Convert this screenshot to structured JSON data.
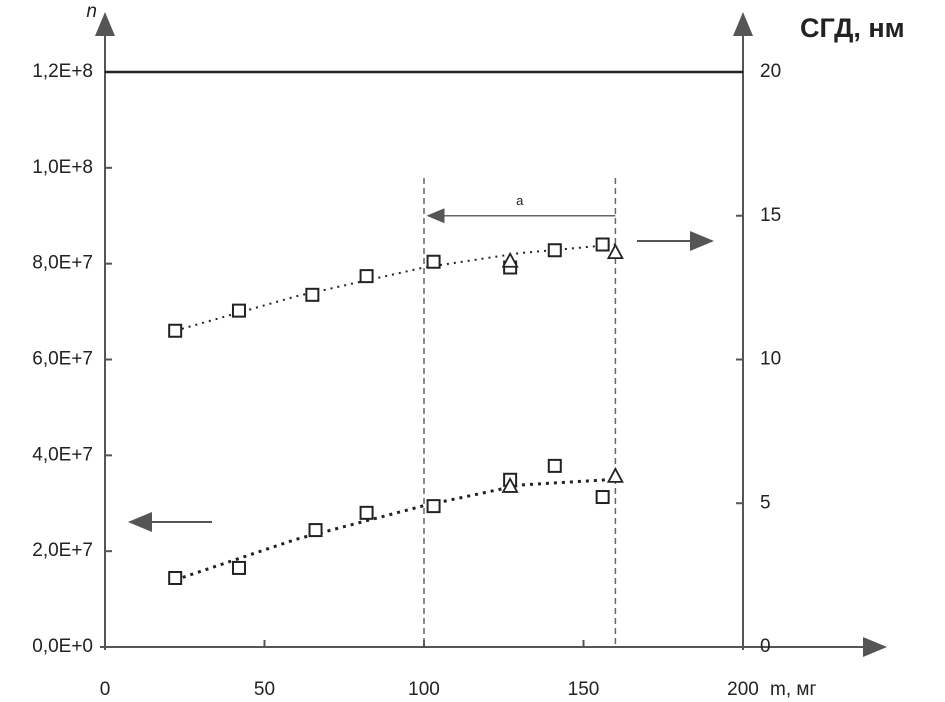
{
  "chart_data": {
    "type": "scatter",
    "x_label": "m, мг",
    "y_label": "n",
    "y2_label": "СГД, нм",
    "xlim": [
      0,
      200
    ],
    "xticks": [
      0,
      50,
      100,
      150,
      200
    ],
    "ylim": [
      0,
      120000000
    ],
    "yticks": [
      {
        "value": 0,
        "label": "0,0E+0"
      },
      {
        "value": 20000000,
        "label": "2,0E+7"
      },
      {
        "value": 40000000,
        "label": "4,0E+7"
      },
      {
        "value": 60000000,
        "label": "6,0E+7"
      },
      {
        "value": 80000000,
        "label": "8,0E+7"
      },
      {
        "value": 100000000,
        "label": "1,0E+8"
      },
      {
        "value": 120000000,
        "label": "1,2E+8"
      }
    ],
    "y2lim": [
      0,
      20
    ],
    "y2ticks": [
      0,
      5,
      10,
      15,
      20
    ],
    "color": "#222222",
    "series": [
      {
        "marker": "square",
        "axis": "y2",
        "x": [
          22,
          42,
          65,
          82,
          103,
          127,
          141,
          156
        ],
        "values": [
          11.0,
          11.7,
          12.25,
          12.9,
          13.4,
          13.2,
          13.8,
          14.0
        ]
      },
      {
        "marker": "triangle",
        "axis": "y2",
        "x": [
          127,
          160
        ],
        "values": [
          13.4,
          13.7
        ]
      },
      {
        "marker": "square",
        "axis": "y",
        "x": [
          22,
          42,
          66,
          82,
          103,
          127,
          141,
          156
        ],
        "values": [
          14400000,
          16500000,
          24400000,
          28000000,
          29400000,
          34900000,
          37800000,
          31300000
        ]
      },
      {
        "marker": "triangle",
        "axis": "y",
        "x": [
          127,
          160
        ],
        "values": [
          33400000,
          35500000
        ]
      },
      {
        "marker": "dotted-line",
        "axis": "y2",
        "x": [
          22,
          60,
          100,
          130,
          160
        ],
        "values": [
          11.0,
          12.2,
          13.2,
          13.7,
          14.0
        ]
      },
      {
        "marker": "dotted-line",
        "axis": "y",
        "x": [
          22,
          60,
          100,
          130,
          160
        ],
        "values": [
          14000000,
          22500000,
          29500000,
          33800000,
          35000000
        ]
      }
    ],
    "reference_lines": {
      "y": [
        120000000
      ],
      "x": [
        100,
        160
      ]
    },
    "annotations": [
      {
        "text": "a",
        "x_from": 160,
        "x_to": 100,
        "y2": 15
      }
    ]
  }
}
